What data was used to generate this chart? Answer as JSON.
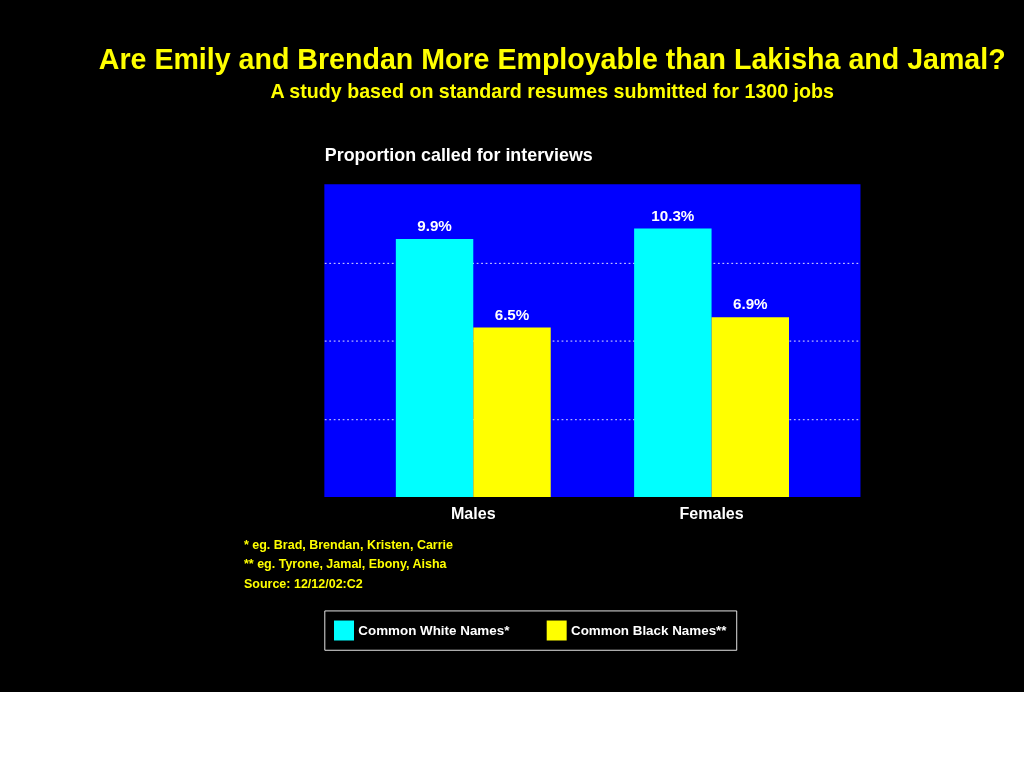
{
  "chart_data": {
    "type": "bar",
    "title": "Are Emily and Brendan More Employable than Lakisha and Jamal?",
    "subtitle": "A study based on standard resumes submitted for 1300 jobs",
    "ylabel": "Proportion called for interviews",
    "categories": [
      "Males",
      "Females"
    ],
    "series": [
      {
        "name": "Common White Names*",
        "color": "#00ffff",
        "values": [
          9.9,
          10.3
        ],
        "value_labels": [
          "9.9%",
          "10.3%"
        ]
      },
      {
        "name": "Common Black Names**",
        "color": "#ffff00",
        "values": [
          6.5,
          6.9
        ],
        "value_labels": [
          "6.5%",
          "6.9%"
        ]
      }
    ],
    "ylim": [
      0,
      12
    ],
    "yticks": [
      {
        "value": 3,
        "label": null
      },
      {
        "value": 6,
        "label": null
      },
      {
        "value": 9,
        "label": null
      }
    ],
    "grid": "y",
    "legend": "bottom",
    "annotations": [
      "* eg. Brad, Brendan, Kristen, Carrie",
      "** eg. Tyrone, Jamal, Ebony, Aisha",
      "Source: 12/12/02:C2"
    ]
  }
}
